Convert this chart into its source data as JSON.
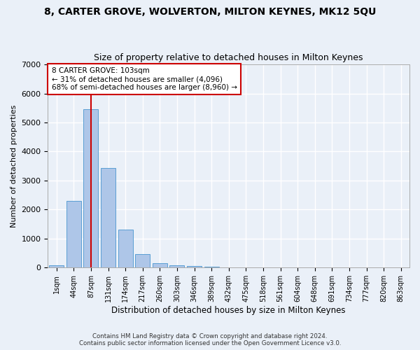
{
  "title": "8, CARTER GROVE, WOLVERTON, MILTON KEYNES, MK12 5QU",
  "subtitle": "Size of property relative to detached houses in Milton Keynes",
  "xlabel": "Distribution of detached houses by size in Milton Keynes",
  "ylabel": "Number of detached properties",
  "footnote1": "Contains HM Land Registry data © Crown copyright and database right 2024.",
  "footnote2": "Contains public sector information licensed under the Open Government Licence v3.0.",
  "bar_labels": [
    "1sqm",
    "44sqm",
    "87sqm",
    "131sqm",
    "174sqm",
    "217sqm",
    "260sqm",
    "303sqm",
    "346sqm",
    "389sqm",
    "432sqm",
    "475sqm",
    "518sqm",
    "561sqm",
    "604sqm",
    "648sqm",
    "691sqm",
    "734sqm",
    "777sqm",
    "820sqm",
    "863sqm"
  ],
  "bar_values": [
    80,
    2300,
    5450,
    3430,
    1310,
    470,
    155,
    85,
    55,
    35,
    0,
    0,
    0,
    0,
    0,
    0,
    0,
    0,
    0,
    0,
    0
  ],
  "bar_color": "#aec6e8",
  "bar_edge_color": "#5a9fd4",
  "ylim": [
    0,
    7000
  ],
  "yticks": [
    0,
    1000,
    2000,
    3000,
    4000,
    5000,
    6000,
    7000
  ],
  "vline_x": 2,
  "vline_color": "#cc0000",
  "annotation_text": "8 CARTER GROVE: 103sqm\n← 31% of detached houses are smaller (4,096)\n68% of semi-detached houses are larger (8,960) →",
  "annotation_box_color": "#ffffff",
  "annotation_box_edge": "#cc0000",
  "bg_color": "#eaf0f8",
  "plot_bg": "#eaf0f8",
  "grid_color": "#ffffff",
  "title_fontsize": 10,
  "subtitle_fontsize": 9
}
